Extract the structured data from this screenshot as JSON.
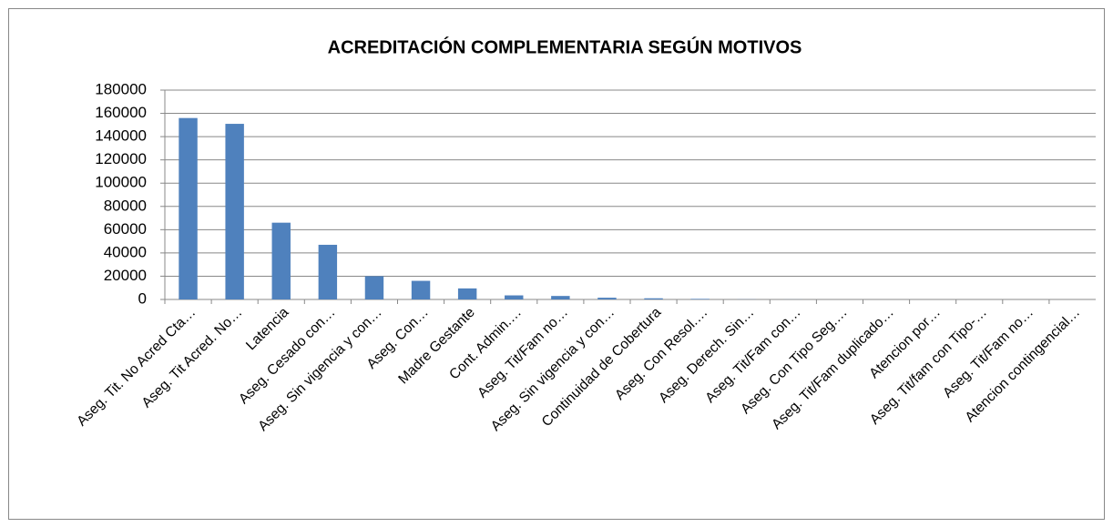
{
  "chart_data": {
    "type": "bar",
    "title": "ACREDITACIÓN COMPLEMENTARIA SEGÚN MOTIVOS",
    "categories": [
      "Aseg. Tit. No Acred Cta…",
      "Aseg. Tit Acred. No…",
      "Latencia",
      "Aseg. Cesado con…",
      "Aseg. Sin vigencia y con…",
      "Aseg. Con…",
      "Madre Gestante",
      "Cont. Admin.…",
      "Aseg. Tit/Fam no…",
      "Aseg. Sin vigencia y con…",
      "Continuidad de Cobertura",
      "Aseg. Con Resol.…",
      "Aseg. Derech. Sin…",
      "Aseg. Tit/Fam con…",
      "Aseg. Con Tipo Seg.…",
      "Aseg. Tit/Fam duplicado…",
      "Atencion por…",
      "Aseg. Tit/fam con Tipo-…",
      "Aseg. Tit/Fam no…",
      "Atencion contingencial…"
    ],
    "values": [
      156000,
      151000,
      66000,
      47000,
      20000,
      16000,
      9500,
      3500,
      3000,
      1500,
      1000,
      500,
      100,
      50,
      0,
      0,
      0,
      0,
      0,
      0
    ],
    "color": "#4f81bd",
    "ylim": [
      0,
      180000
    ],
    "yticks": [
      0,
      20000,
      40000,
      60000,
      80000,
      100000,
      120000,
      140000,
      160000,
      180000
    ],
    "grid": true
  }
}
